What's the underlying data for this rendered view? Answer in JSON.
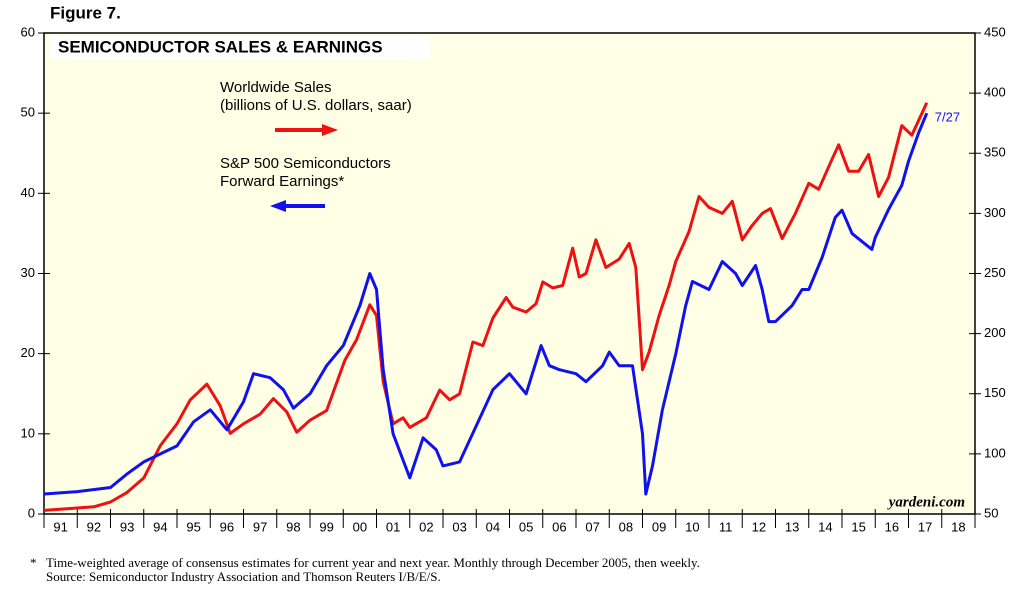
{
  "chart_data": {
    "type": "line",
    "figure_label": "Figure 7.",
    "title": "SEMICONDUCTOR SALES & EARNINGS",
    "end_label": "7/27",
    "watermark": "yardeni.com",
    "footnote": "Time-weighted average of consensus estimates for current year and next year. Monthly through December 2005, then weekly.",
    "footnote_mark": "*",
    "source": "Source:  Semiconductor Industry Association and Thomson Reuters I/B/E/S.",
    "xlim": [
      1991,
      2019
    ],
    "xticks": [
      {
        "value": 1991.5,
        "label": "91"
      },
      {
        "value": 1992.5,
        "label": "92"
      },
      {
        "value": 1993.5,
        "label": "93"
      },
      {
        "value": 1994.5,
        "label": "94"
      },
      {
        "value": 1995.5,
        "label": "95"
      },
      {
        "value": 1996.5,
        "label": "96"
      },
      {
        "value": 1997.5,
        "label": "97"
      },
      {
        "value": 1998.5,
        "label": "98"
      },
      {
        "value": 1999.5,
        "label": "99"
      },
      {
        "value": 2000.5,
        "label": "00"
      },
      {
        "value": 2001.5,
        "label": "01"
      },
      {
        "value": 2002.5,
        "label": "02"
      },
      {
        "value": 2003.5,
        "label": "03"
      },
      {
        "value": 2004.5,
        "label": "04"
      },
      {
        "value": 2005.5,
        "label": "05"
      },
      {
        "value": 2006.5,
        "label": "06"
      },
      {
        "value": 2007.5,
        "label": "07"
      },
      {
        "value": 2008.5,
        "label": "08"
      },
      {
        "value": 2009.5,
        "label": "09"
      },
      {
        "value": 2010.5,
        "label": "10"
      },
      {
        "value": 2011.5,
        "label": "11"
      },
      {
        "value": 2012.5,
        "label": "12"
      },
      {
        "value": 2013.5,
        "label": "13"
      },
      {
        "value": 2014.5,
        "label": "14"
      },
      {
        "value": 2015.5,
        "label": "15"
      },
      {
        "value": 2016.5,
        "label": "16"
      },
      {
        "value": 2017.5,
        "label": "17"
      },
      {
        "value": 2018.5,
        "label": "18"
      }
    ],
    "ylim": [
      0,
      60
    ],
    "yticks": [
      0,
      10,
      20,
      30,
      40,
      50,
      60
    ],
    "y2lim": [
      50,
      450
    ],
    "y2ticks": [
      50,
      100,
      150,
      200,
      250,
      300,
      350,
      400,
      450
    ],
    "series": [
      {
        "name": "Worldwide Sales",
        "name_line2": "(billions of U.S. dollars, saar)",
        "color": "#ee1111",
        "axis": "y2",
        "x": [
          1991.0,
          1992.0,
          1992.5,
          1993.0,
          1993.5,
          1994.0,
          1994.5,
          1995.0,
          1995.4,
          1995.9,
          1996.3,
          1996.6,
          1997.0,
          1997.5,
          1997.9,
          1998.3,
          1998.6,
          1999.0,
          1999.5,
          2000.05,
          2000.4,
          2000.8,
          2001.0,
          2001.2,
          2001.5,
          2001.8,
          2002.0,
          2002.5,
          2002.9,
          2003.2,
          2003.5,
          2003.9,
          2004.2,
          2004.5,
          2004.9,
          2005.1,
          2005.5,
          2005.8,
          2006.0,
          2006.3,
          2006.6,
          2006.9,
          2007.1,
          2007.3,
          2007.6,
          2007.9,
          2008.3,
          2008.6,
          2008.8,
          2009.0,
          2009.2,
          2009.5,
          2009.8,
          2010.0,
          2010.4,
          2010.7,
          2011.0,
          2011.4,
          2011.7,
          2012.0,
          2012.3,
          2012.6,
          2012.85,
          2013.2,
          2013.6,
          2014.0,
          2014.3,
          2014.7,
          2014.9,
          2015.2,
          2015.5,
          2015.8,
          2016.1,
          2016.4,
          2016.8,
          2017.1,
          2017.55
        ],
        "values": [
          53,
          55,
          56,
          60,
          68,
          80,
          107,
          125,
          145,
          158,
          140,
          117,
          125,
          133,
          146,
          135,
          118,
          128,
          136,
          178,
          195,
          224,
          215,
          160,
          125,
          130,
          122,
          130,
          153,
          145,
          150,
          193,
          190,
          213,
          230,
          222,
          218,
          225,
          243,
          238,
          240,
          271,
          247,
          250,
          278,
          255,
          262,
          275,
          255,
          170,
          185,
          215,
          240,
          260,
          285,
          314,
          305,
          300,
          310,
          278,
          290,
          300,
          304,
          279,
          300,
          325,
          320,
          345,
          357,
          335,
          335,
          349,
          314,
          330,
          373,
          365,
          392
        ]
      },
      {
        "name": "S&P 500 Semiconductors",
        "name_line2": "Forward Earnings*",
        "color": "#1111ee",
        "axis": "y",
        "x": [
          1991.0,
          1992.0,
          1993.0,
          1993.5,
          1994.0,
          1994.5,
          1995.0,
          1995.5,
          1996.0,
          1996.5,
          1997.0,
          1997.3,
          1997.8,
          1998.2,
          1998.5,
          1999.0,
          1999.5,
          2000.0,
          2000.5,
          2000.8,
          2001.0,
          2001.2,
          2001.5,
          2002.0,
          2002.4,
          2002.8,
          2003.0,
          2003.5,
          2004.0,
          2004.5,
          2005.0,
          2005.5,
          2005.95,
          2006.2,
          2006.5,
          2007.0,
          2007.3,
          2007.8,
          2008.0,
          2008.3,
          2008.7,
          2009.0,
          2009.1,
          2009.3,
          2009.6,
          2010.0,
          2010.3,
          2010.5,
          2011.0,
          2011.4,
          2011.8,
          2012.0,
          2012.4,
          2012.6,
          2012.8,
          2013.0,
          2013.5,
          2013.8,
          2014.0,
          2014.4,
          2014.8,
          2015.0,
          2015.3,
          2015.6,
          2015.9,
          2016.0,
          2016.4,
          2016.8,
          2017.0,
          2017.3,
          2017.55
        ],
        "values": [
          2.5,
          2.8,
          3.3,
          5,
          6.5,
          7.5,
          8.5,
          11.5,
          13,
          10.5,
          14,
          17.5,
          17,
          15.5,
          13.2,
          15,
          18.5,
          21,
          26,
          30,
          28,
          18,
          10,
          4.5,
          9.5,
          8,
          6,
          6.5,
          11,
          15.5,
          17.5,
          15,
          21,
          18.5,
          18,
          17.5,
          16.5,
          18.5,
          20.2,
          18.5,
          18.5,
          10,
          2.5,
          6,
          13,
          20,
          26,
          29,
          28,
          31.5,
          30,
          28.5,
          31,
          28,
          24,
          24,
          26,
          28,
          28,
          32,
          37,
          37.9,
          35,
          34,
          33,
          34.5,
          38,
          41,
          44,
          47.5,
          50
        ]
      }
    ]
  }
}
